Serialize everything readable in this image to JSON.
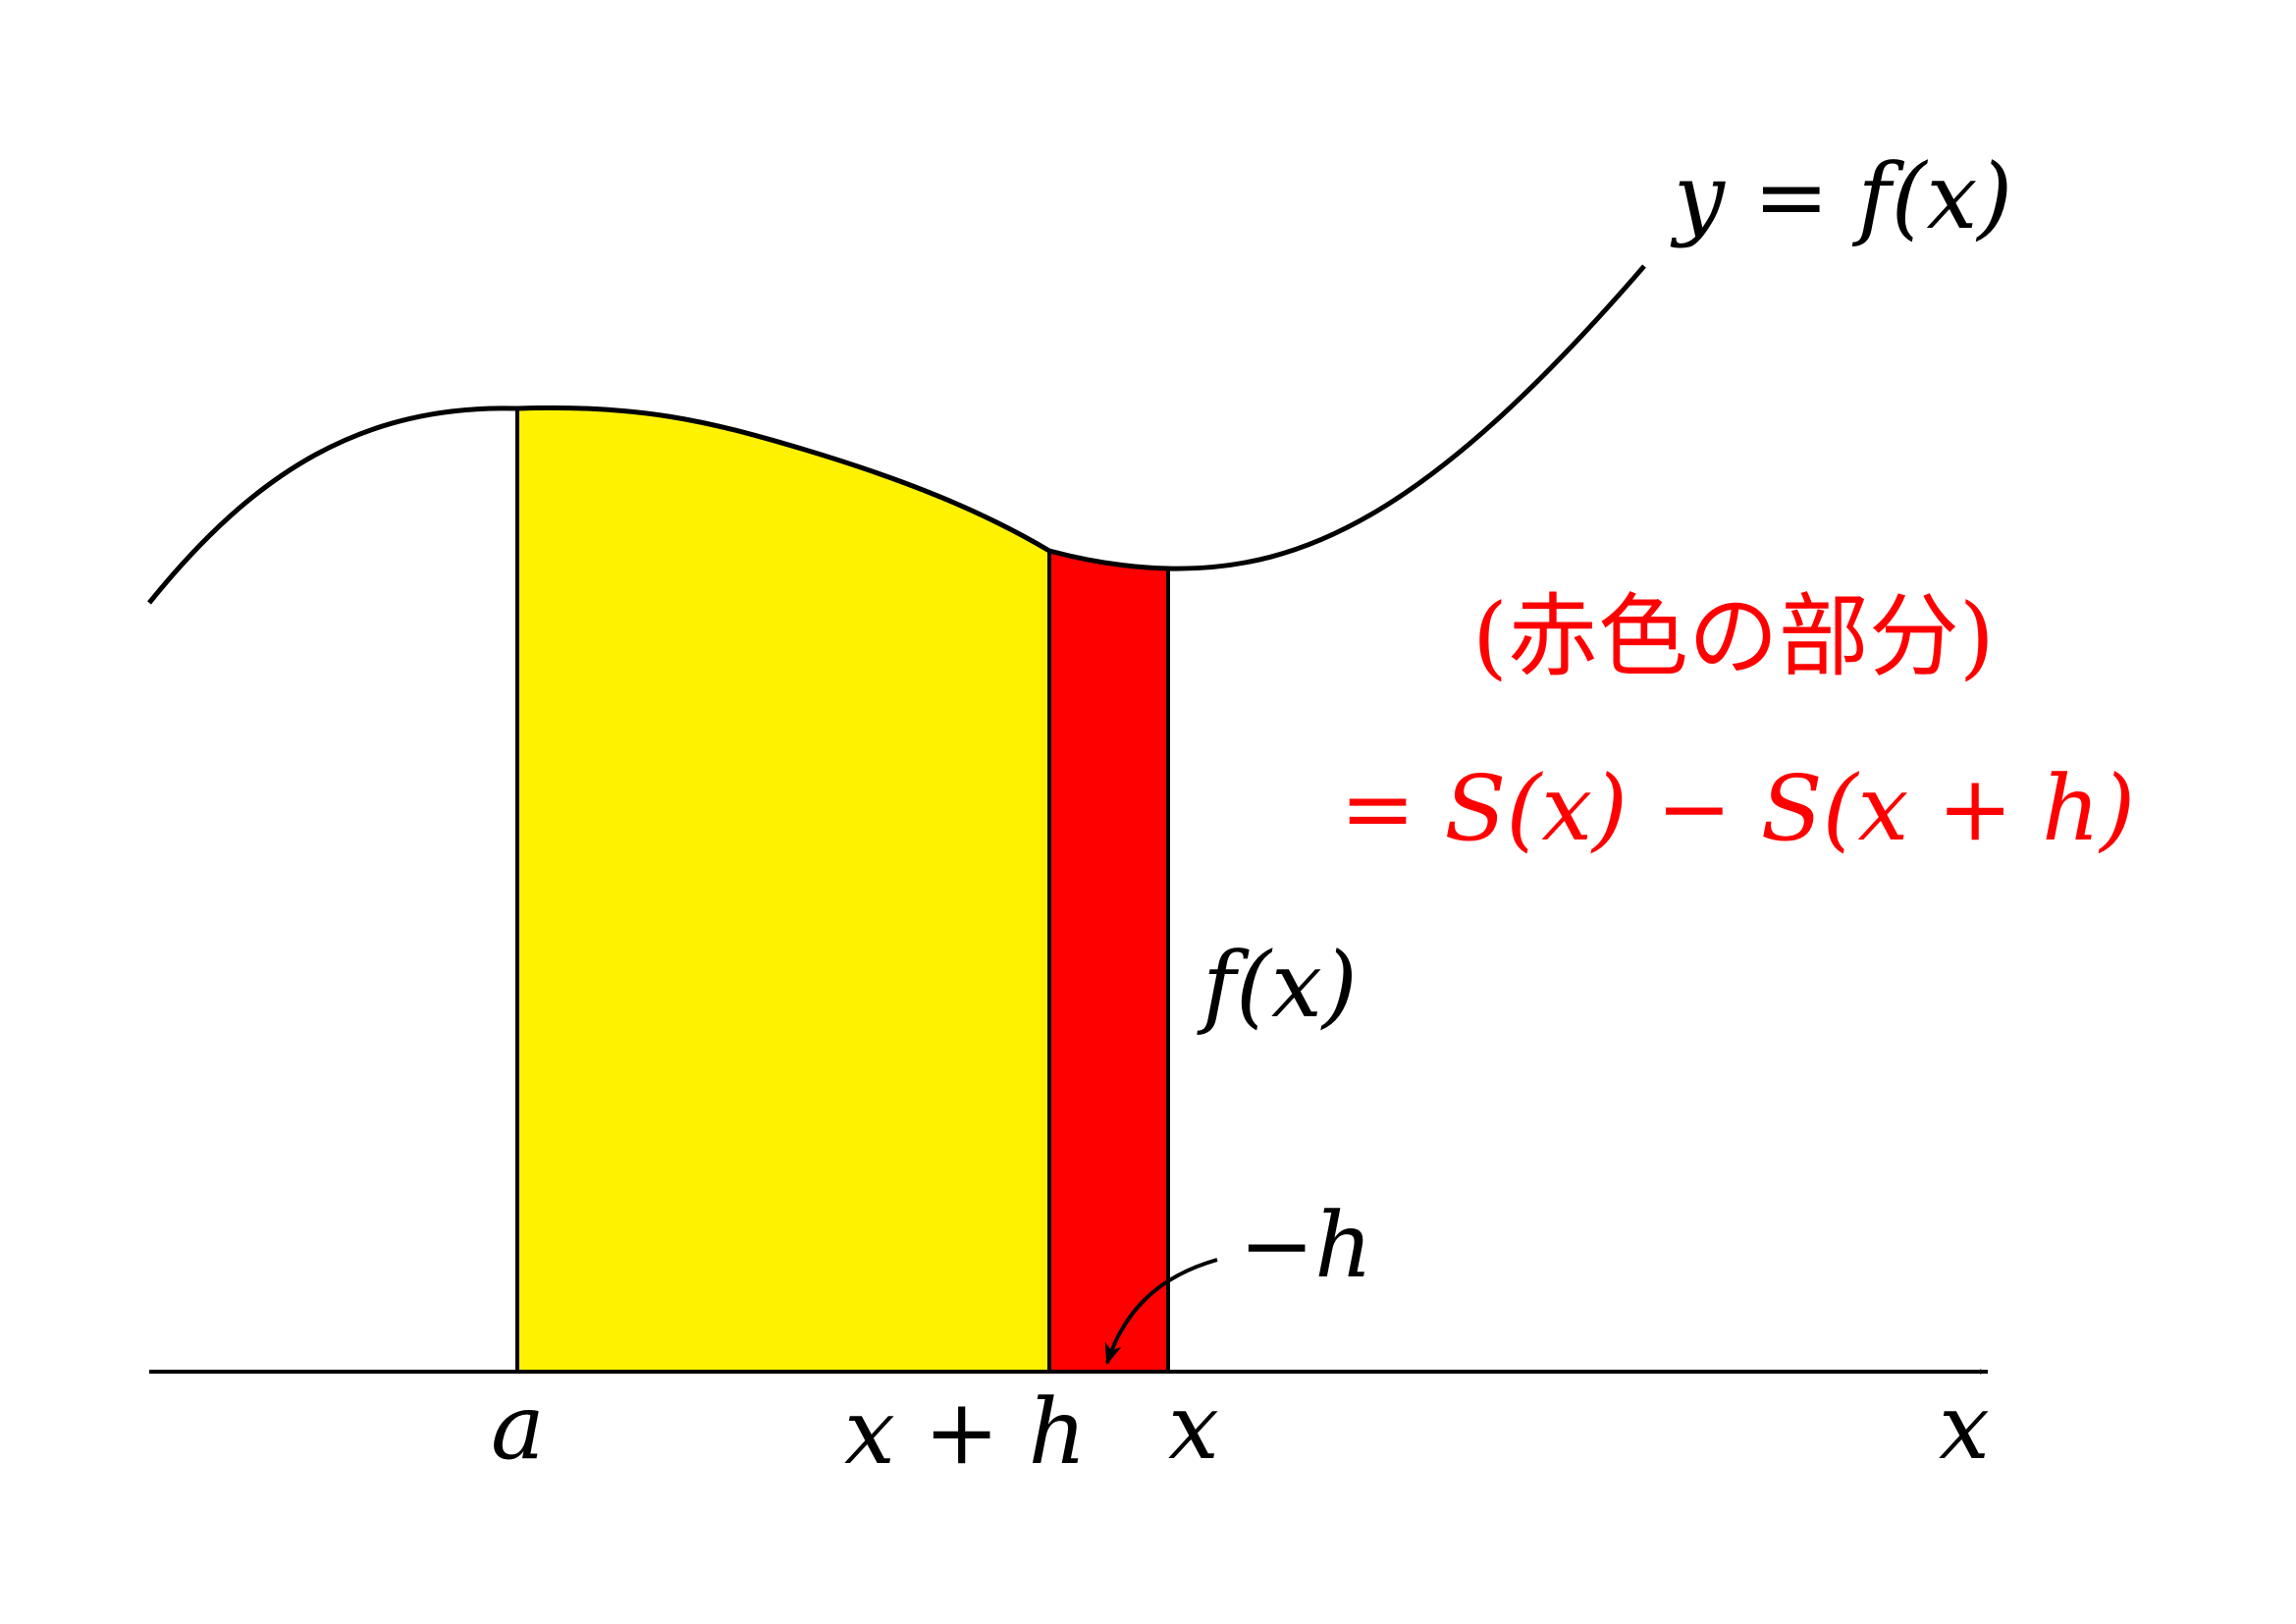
{
  "diagram": {
    "curve_label": "y = f(x)",
    "axis_label": "x",
    "tick_a": "a",
    "tick_x_plus_h": "x + h",
    "tick_x": "x",
    "height_label": "f(x)",
    "width_label": "−h",
    "annotation_line1": "(赤色の部分)",
    "annotation_line2": "= S(x) − S(x + h)"
  },
  "colors": {
    "yellow_region": "#fff200",
    "red_region": "#ff0000",
    "annotation_text": "#ff0000",
    "stroke": "#000000"
  }
}
